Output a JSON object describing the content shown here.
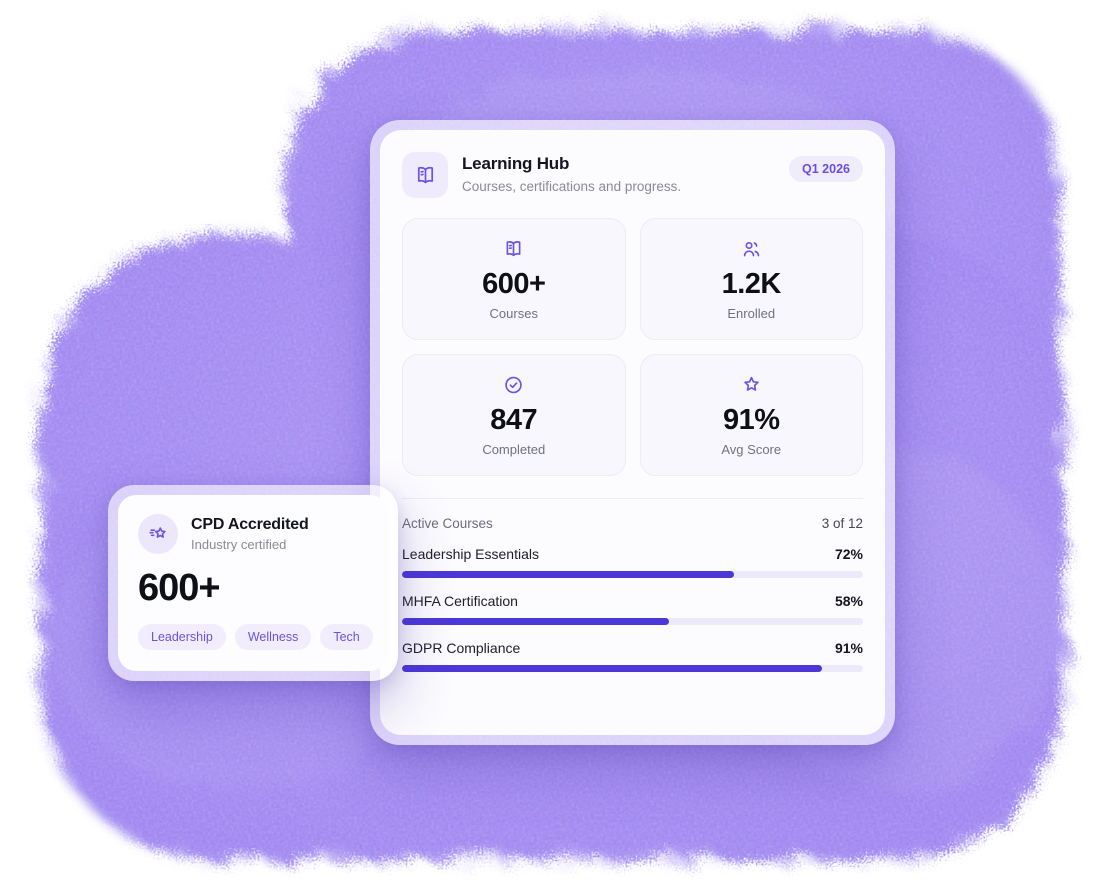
{
  "colors": {
    "blob_purple": "#9e86f0",
    "accent_purple": "#6b54e6",
    "progress_fill": "#4b38d6",
    "progress_track": "#ece9fa",
    "badge_bg": "#efecfb",
    "card_bg": "#fcfbfe",
    "stat_card_bg": "#f7f7fd"
  },
  "main_card": {
    "title": "Learning Hub",
    "subtitle": "Courses, certifications and progress.",
    "badge": "Q1 2026",
    "stats": [
      {
        "icon": "book-icon",
        "value": "600+",
        "label": "Courses"
      },
      {
        "icon": "users-icon",
        "value": "1.2K",
        "label": "Enrolled"
      },
      {
        "icon": "check-circle-icon",
        "value": "847",
        "label": "Completed"
      },
      {
        "icon": "star-icon",
        "value": "91%",
        "label": "Avg Score"
      }
    ],
    "active_courses": {
      "title": "Active Courses",
      "count": "3 of 12",
      "courses": [
        {
          "name": "Leadership Essentials",
          "percent": "72%",
          "value": 72
        },
        {
          "name": "MHFA Certification",
          "percent": "58%",
          "value": 58
        },
        {
          "name": "GDPR Compliance",
          "percent": "91%",
          "value": 91
        }
      ]
    }
  },
  "mini_card": {
    "title": "CPD Accredited",
    "subtitle": "Industry certified",
    "value": "600+",
    "tags": [
      "Leadership",
      "Wellness",
      "Tech"
    ]
  }
}
